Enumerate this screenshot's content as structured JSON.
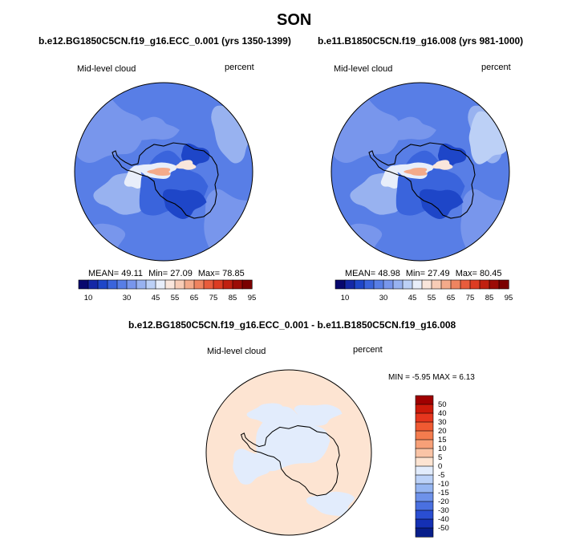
{
  "page": {
    "title": "SON"
  },
  "panels": [
    {
      "id": "left",
      "case": "b.e12.BG1850C5CN.f19_g16.ECC_0.001 (yrs 1350-1399)",
      "variable": "Mid-level cloud",
      "units": "percent",
      "stats": {
        "mean_label": "MEAN=",
        "mean": "49.11",
        "min_label": "Min=",
        "min": "27.09",
        "max_label": "Max=",
        "max": "78.85"
      }
    },
    {
      "id": "right",
      "case": "b.e11.B1850C5CN.f19_g16.008 (yrs 981-1000)",
      "variable": "Mid-level cloud",
      "units": "percent",
      "stats": {
        "mean_label": "MEAN=",
        "mean": "48.98",
        "min_label": "Min=",
        "min": "27.49",
        "max_label": "Max=",
        "max": "80.45"
      }
    }
  ],
  "diff": {
    "title": "b.e12.BG1850C5CN.f19_g16.ECC_0.001 - b.e11.B1850C5CN.f19_g16.008",
    "variable": "Mid-level cloud",
    "units": "percent",
    "minmax_text": "MIN =  -5.95 MAX =  6.13"
  },
  "chart_data": [
    {
      "type": "heatmap",
      "title": "b.e12.BG1850C5CN.f19_g16.ECC_0.001 (yrs 1350-1399)",
      "variable": "Mid-level cloud",
      "units": "percent",
      "projection": "south polar stereographic",
      "mean": 49.11,
      "min": 27.09,
      "max": 78.85,
      "colorbar": {
        "orientation": "horizontal",
        "levels": [
          10,
          15,
          20,
          25,
          30,
          35,
          40,
          45,
          50,
          55,
          60,
          65,
          70,
          75,
          80,
          85,
          90,
          95
        ],
        "tick_labels": [
          "10",
          "30",
          "45",
          "55",
          "65",
          "75",
          "85",
          "95"
        ],
        "colors": [
          "#08086e",
          "#1428a6",
          "#1e46c8",
          "#3a64dc",
          "#587ee6",
          "#7896ec",
          "#98b2f0",
          "#bcd0f6",
          "#e8eefa",
          "#fae6dc",
          "#f8ccb6",
          "#f4aa8a",
          "#ef8460",
          "#e85c3c",
          "#dc3c22",
          "#c02010",
          "#9c0c06",
          "#7a0000"
        ]
      }
    },
    {
      "type": "heatmap",
      "title": "b.e11.B1850C5CN.f19_g16.008 (yrs 981-1000)",
      "variable": "Mid-level cloud",
      "units": "percent",
      "projection": "south polar stereographic",
      "mean": 48.98,
      "min": 27.49,
      "max": 80.45,
      "colorbar": {
        "orientation": "horizontal",
        "levels": [
          10,
          15,
          20,
          25,
          30,
          35,
          40,
          45,
          50,
          55,
          60,
          65,
          70,
          75,
          80,
          85,
          90,
          95
        ],
        "tick_labels": [
          "10",
          "30",
          "45",
          "55",
          "65",
          "75",
          "85",
          "95"
        ],
        "colors": [
          "#08086e",
          "#1428a6",
          "#1e46c8",
          "#3a64dc",
          "#587ee6",
          "#7896ec",
          "#98b2f0",
          "#bcd0f6",
          "#e8eefa",
          "#fae6dc",
          "#f8ccb6",
          "#f4aa8a",
          "#ef8460",
          "#e85c3c",
          "#dc3c22",
          "#c02010",
          "#9c0c06",
          "#7a0000"
        ]
      }
    },
    {
      "type": "heatmap",
      "title": "b.e12.BG1850C5CN.f19_g16.ECC_0.001 - b.e11.B1850C5CN.f19_g16.008",
      "variable": "Mid-level cloud",
      "units": "percent",
      "projection": "south polar stereographic",
      "min": -5.95,
      "max": 6.13,
      "colorbar": {
        "orientation": "vertical",
        "tick_labels": [
          "50",
          "40",
          "30",
          "20",
          "15",
          "10",
          "5",
          "0",
          "-5",
          "-10",
          "-15",
          "-20",
          "-30",
          "-40",
          "-50"
        ],
        "colors": [
          "#a00000",
          "#cc1a0a",
          "#e6361e",
          "#f05a32",
          "#f47c4e",
          "#f7a078",
          "#fac4a6",
          "#fde4d2",
          "#e2ecfc",
          "#bcd2f8",
          "#96b6f2",
          "#6e92ea",
          "#4a70e0",
          "#2a4ed2",
          "#1430b4",
          "#081e8a"
        ]
      }
    }
  ]
}
